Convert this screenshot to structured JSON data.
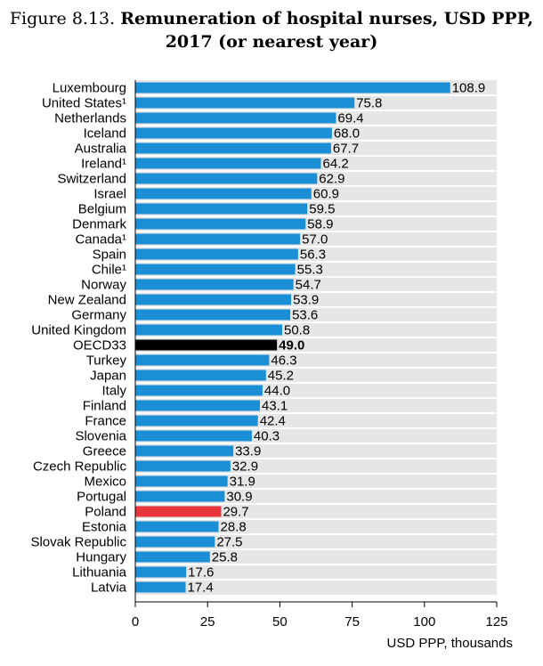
{
  "title": {
    "figure": "Figure 8.13.",
    "text": "Remuneration of hospital nurses, USD PPP, 2017 (or nearest year)"
  },
  "colors": {
    "bar": "#1a8fd6",
    "oecd": "#000000",
    "highlight": "#e8343a",
    "band": "#e6e6e6"
  },
  "chart_data": {
    "type": "bar",
    "orientation": "horizontal",
    "title": "Remuneration of hospital nurses, USD PPP, 2017 (or nearest year)",
    "xlabel": "USD PPP, thousands",
    "ylabel": "",
    "xlim": [
      0,
      125
    ],
    "xticks": [
      0,
      25,
      50,
      75,
      100,
      125
    ],
    "grid": false,
    "legend": "none",
    "categories": [
      "Luxembourg",
      "United States¹",
      "Netherlands",
      "Iceland",
      "Australia",
      "Ireland¹",
      "Switzerland",
      "Israel",
      "Belgium",
      "Denmark",
      "Canada¹",
      "Spain",
      "Chile¹",
      "Norway",
      "New Zealand",
      "Germany",
      "United Kingdom",
      "OECD33",
      "Turkey",
      "Japan",
      "Italy",
      "Finland",
      "France",
      "Slovenia",
      "Greece",
      "Czech Republic",
      "Mexico",
      "Portugal",
      "Poland",
      "Estonia",
      "Slovak Republic",
      "Hungary",
      "Lithuania",
      "Latvia"
    ],
    "values": [
      108.9,
      75.8,
      69.4,
      68.0,
      67.7,
      64.2,
      62.9,
      60.9,
      59.5,
      58.9,
      57.0,
      56.3,
      55.3,
      54.7,
      53.9,
      53.6,
      50.8,
      49.0,
      46.3,
      45.2,
      44.0,
      43.1,
      42.4,
      40.3,
      33.9,
      32.9,
      31.9,
      30.9,
      29.7,
      28.8,
      27.5,
      25.8,
      17.6,
      17.4
    ],
    "value_labels": [
      "108.9",
      "75.8",
      "69.4",
      "68.0",
      "67.7",
      "64.2",
      "62.9",
      "60.9",
      "59.5",
      "58.9",
      "57.0",
      "56.3",
      "55.3",
      "54.7",
      "53.9",
      "53.6",
      "50.8",
      "49.0",
      "46.3",
      "45.2",
      "44.0",
      "43.1",
      "42.4",
      "40.3",
      "33.9",
      "32.9",
      "31.9",
      "30.9",
      "29.7",
      "28.8",
      "27.5",
      "25.8",
      "17.6",
      "17.4"
    ],
    "highlight": {
      "OECD33": "oecd",
      "Poland": "highlight"
    }
  }
}
